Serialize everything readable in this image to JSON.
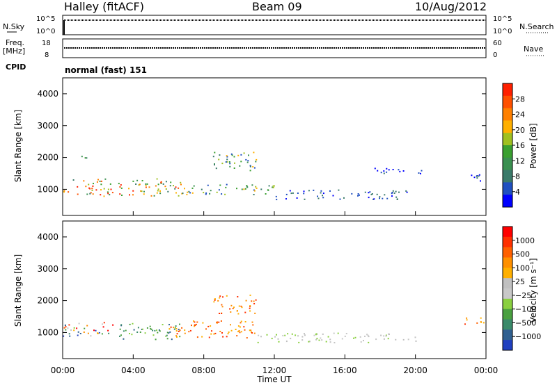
{
  "header": {
    "station": "Halley (fitACF)",
    "beam": "Beam 09",
    "date": "10/Aug/2012"
  },
  "strip_labels": {
    "nsky": "N.Sky",
    "freq": "Freq.",
    "freq_unit": "[MHz]",
    "cpid": "CPID",
    "nsearch": "N.Search",
    "nave": "Nave",
    "nsky_ticks": [
      "10^5",
      "10^0"
    ],
    "freq_ticks": [
      "18",
      "8"
    ],
    "nave_ticks": [
      "60",
      "0"
    ],
    "nsearch_ticks": [
      "10^5",
      "10^0"
    ],
    "cpid_value": "normal (fast) 151"
  },
  "chart_data": [
    {
      "type": "heatmap",
      "panel": "power",
      "ylabel": "Slant Range [km]",
      "xlabel": "",
      "ylim": [
        180,
        4500
      ],
      "yticks": [
        "1000",
        "2000",
        "3000",
        "4000"
      ],
      "colorbar_label": "Power [dB]",
      "colorbar_ticks": [
        "4",
        "8",
        "12",
        "16",
        "20",
        "24",
        "28"
      ],
      "colors": [
        "#0000ff",
        "#2050c0",
        "#3a7a6a",
        "#3a9050",
        "#3aa030",
        "#a0c020",
        "#ffb000",
        "#ff8000",
        "#ff5000",
        "#ff2000"
      ],
      "regions": [
        {
          "t0": 0.0,
          "t1": 6.7,
          "r0": 800,
          "r1": 1350,
          "level": "high"
        },
        {
          "t0": 1.0,
          "t1": 1.5,
          "r0": 1850,
          "r1": 2100,
          "level": "mid"
        },
        {
          "t0": 6.7,
          "t1": 12.0,
          "r0": 850,
          "r1": 1200,
          "level": "mid"
        },
        {
          "t0": 8.5,
          "t1": 11.0,
          "r0": 1600,
          "r1": 2200,
          "level": "mid"
        },
        {
          "t0": 12.0,
          "t1": 19.5,
          "r0": 700,
          "r1": 1000,
          "level": "low"
        },
        {
          "t0": 17.5,
          "t1": 20.5,
          "r0": 1500,
          "r1": 1700,
          "level": "low"
        },
        {
          "t0": 22.7,
          "t1": 24.0,
          "r0": 1250,
          "r1": 1500,
          "level": "low"
        }
      ]
    },
    {
      "type": "heatmap",
      "panel": "velocity",
      "ylabel": "Slant Range [km]",
      "xlabel": "Time UT",
      "ylim": [
        180,
        4500
      ],
      "yticks": [
        "1000",
        "2000",
        "3000",
        "4000"
      ],
      "xticks": [
        "00:00",
        "04:00",
        "08:00",
        "12:00",
        "16:00",
        "20:00",
        "00:00"
      ],
      "colorbar_label": "Velocity [m s⁻¹]",
      "colorbar_ticks": [
        "1000",
        "500",
        "100",
        "25",
        "−25",
        "−100",
        "−500",
        "−1000"
      ],
      "colors": [
        "#2040c0",
        "#306090",
        "#3a8a6a",
        "#4aa040",
        "#8ad040",
        "#c8c8c8",
        "#c0c0c0",
        "#ffb000",
        "#ff9000",
        "#ff6000",
        "#ff3000",
        "#ff0000"
      ],
      "regions": [
        {
          "t0": 0.0,
          "t1": 3.0,
          "r0": 900,
          "r1": 1350,
          "level": "mixed"
        },
        {
          "t0": 3.0,
          "t1": 6.7,
          "r0": 800,
          "r1": 1300,
          "level": "green"
        },
        {
          "t0": 6.0,
          "t1": 11.0,
          "r0": 850,
          "r1": 1400,
          "level": "orange"
        },
        {
          "t0": 8.5,
          "t1": 11.0,
          "r0": 1600,
          "r1": 2200,
          "level": "orange"
        },
        {
          "t0": 11.0,
          "t1": 20.0,
          "r0": 700,
          "r1": 1000,
          "level": "grey"
        },
        {
          "t0": 22.7,
          "t1": 24.0,
          "r0": 1250,
          "r1": 1500,
          "level": "orange"
        }
      ]
    }
  ]
}
